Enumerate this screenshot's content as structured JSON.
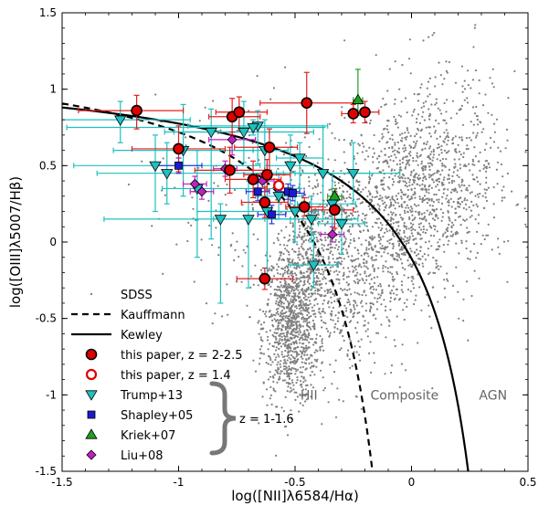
{
  "chart_data": {
    "type": "scatter",
    "xlabel": "log([NII]λ6584/Hα)",
    "ylabel": "log([OIII]λ5007/Hβ)",
    "xlim": [
      -1.5,
      0.5
    ],
    "ylim": [
      -1.5,
      1.5
    ],
    "x_ticks": [
      -1.5,
      -1.0,
      -0.5,
      0,
      0.5
    ],
    "x_tick_labels": [
      "-1.5",
      "-1",
      "-0.5",
      "0",
      "0.5"
    ],
    "y_ticks": [
      -1.5,
      -1.0,
      -0.5,
      0,
      0.5,
      1.0,
      1.5
    ],
    "y_tick_labels": [
      "-1.5",
      "-1",
      "-0.5",
      "0",
      "0.5",
      "1",
      "1.5"
    ],
    "grid": false,
    "legend_placement": "bottom-left",
    "region_labels": [
      {
        "text": "HII",
        "x": -0.44,
        "y": -1.0
      },
      {
        "text": "Composite",
        "x": -0.03,
        "y": -1.0
      },
      {
        "text": "AGN",
        "x": 0.35,
        "y": -1.0
      }
    ],
    "brace_label": "z = 1-1.6",
    "sdss_clusters": [
      {
        "cx": -0.52,
        "cy": -0.55,
        "sx": 0.06,
        "sy": 0.25,
        "n": 900
      },
      {
        "cx": -0.42,
        "cy": -0.1,
        "sx": 0.08,
        "sy": 0.3,
        "n": 500
      },
      {
        "cx": -0.25,
        "cy": -0.2,
        "sx": 0.12,
        "sy": 0.35,
        "n": 500
      },
      {
        "cx": -0.05,
        "cy": 0.25,
        "sx": 0.12,
        "sy": 0.3,
        "n": 700
      },
      {
        "cx": 0.15,
        "cy": 0.45,
        "sx": 0.15,
        "sy": 0.35,
        "n": 600
      },
      {
        "cx": -0.75,
        "cy": 0.2,
        "sx": 0.2,
        "sy": 0.4,
        "n": 120
      }
    ],
    "series": [
      {
        "name": "SDSS",
        "marker": "small-dot",
        "color": "#808080"
      },
      {
        "name": "Kauffmann",
        "marker": "dashed-line",
        "color": "#000000",
        "formula": "0.61/(x-0.05)+1.3"
      },
      {
        "name": "Kewley",
        "marker": "solid-line",
        "color": "#000000",
        "formula": "0.61/(x-0.47)+1.19"
      },
      {
        "name": "this paper, z = 2-2.5",
        "marker": "filled-circle",
        "color": "#e00000",
        "fill": "#e00000",
        "errcolor": "#e02020",
        "points": [
          {
            "x": -1.18,
            "y": 0.86,
            "xl": 0.25,
            "xh": 0.2,
            "yl": 0.12,
            "yh": 0.1
          },
          {
            "x": -1.0,
            "y": 0.61,
            "xl": 0.2,
            "xh": 0.2,
            "yl": 0.15,
            "yh": 0.15
          },
          {
            "x": -0.77,
            "y": 0.82,
            "xl": 0.1,
            "xh": 0.12,
            "yl": 0.12,
            "yh": 0.12
          },
          {
            "x": -0.74,
            "y": 0.85,
            "xl": 0.1,
            "xh": 0.12,
            "yl": 0.12,
            "yh": 0.1
          },
          {
            "x": -0.78,
            "y": 0.47,
            "xl": 0.15,
            "xh": 0.15,
            "yl": 0.15,
            "yh": 0.15
          },
          {
            "x": -0.61,
            "y": 0.62,
            "xl": 0.15,
            "xh": 0.12,
            "yl": 0.15,
            "yh": 0.12
          },
          {
            "x": -0.68,
            "y": 0.41,
            "xl": 0.12,
            "xh": 0.12,
            "yl": 0.12,
            "yh": 0.12
          },
          {
            "x": -0.62,
            "y": 0.44,
            "xl": 0.1,
            "xh": 0.1,
            "yl": 0.1,
            "yh": 0.1
          },
          {
            "x": -0.63,
            "y": 0.26,
            "xl": 0.1,
            "xh": 0.1,
            "yl": 0.1,
            "yh": 0.1
          },
          {
            "x": -0.45,
            "y": 0.91,
            "xl": 0.2,
            "xh": 0.2,
            "yl": 0.2,
            "yh": 0.2
          },
          {
            "x": -0.46,
            "y": 0.23,
            "xl": 0.08,
            "xh": 0.08,
            "yl": 0.06,
            "yh": 0.06
          },
          {
            "x": -0.33,
            "y": 0.21,
            "xl": 0.1,
            "xh": 0.08,
            "yl": 0.12,
            "yh": 0.12
          },
          {
            "x": -0.25,
            "y": 0.84,
            "xl": 0.05,
            "xh": 0.05,
            "yl": 0.06,
            "yh": 0.06
          },
          {
            "x": -0.2,
            "y": 0.85,
            "xl": 0.06,
            "xh": 0.06,
            "yl": 0.07,
            "yh": 0.07
          },
          {
            "x": -0.63,
            "y": -0.24,
            "xl": 0.12,
            "xh": 0.12,
            "yl": 0.07,
            "yh": 0.07
          }
        ]
      },
      {
        "name": "this paper, z = 1.4",
        "marker": "open-circle",
        "color": "#e00000",
        "fill": "#ffffff",
        "errcolor": "#e02020",
        "points": [
          {
            "x": -0.57,
            "y": 0.37,
            "xl": 0.02,
            "xh": 0.02,
            "yl": 0.02,
            "yh": 0.02
          }
        ]
      },
      {
        "name": "Trump+13",
        "marker": "triangle-down",
        "color": "#20c0c0",
        "fill": "#20c0c0",
        "errcolor": "#20c0c0",
        "points": [
          {
            "x": -1.25,
            "y": 0.8,
            "xl": 0.45,
            "xh": 0.3,
            "yl": 0.15,
            "yh": 0.12
          },
          {
            "x": -1.1,
            "y": 0.5,
            "xl": 0.35,
            "xh": 0.45,
            "yl": 0.3,
            "yh": 0.2
          },
          {
            "x": -1.05,
            "y": 0.45,
            "xl": 0.3,
            "xh": 0.5,
            "yl": 0.2,
            "yh": 0.2
          },
          {
            "x": -0.98,
            "y": 0.6,
            "xl": 0.3,
            "xh": 0.3,
            "yl": 0.3,
            "yh": 0.3
          },
          {
            "x": -0.92,
            "y": 0.35,
            "xl": 0.15,
            "xh": 0.35,
            "yl": 0.45,
            "yh": 0.25
          },
          {
            "x": -0.86,
            "y": 0.72,
            "xl": 0.2,
            "xh": 0.25,
            "yl": 0.7,
            "yh": 0.15
          },
          {
            "x": -0.82,
            "y": 0.15,
            "xl": 0.5,
            "xh": 0.3,
            "yl": 0.55,
            "yh": 0.1
          },
          {
            "x": -0.72,
            "y": 0.72,
            "xl": 0.3,
            "xh": 0.3,
            "yl": 0.2,
            "yh": 0.2
          },
          {
            "x": -0.66,
            "y": 0.76,
            "xl": 0.3,
            "xh": 0.3,
            "yl": 0.25,
            "yh": 0.1
          },
          {
            "x": -0.63,
            "y": 0.6,
            "xl": 0.15,
            "xh": 0.1,
            "yl": 0.3,
            "yh": 0.2
          },
          {
            "x": -0.7,
            "y": 0.15,
            "xl": 0.15,
            "xh": 0.2,
            "yl": 0.45,
            "yh": 0.25
          },
          {
            "x": -0.62,
            "y": 0.2,
            "xl": 0.3,
            "xh": 0.2,
            "yl": 0.45,
            "yh": 0.3
          },
          {
            "x": -0.57,
            "y": 0.3,
            "xl": 0.1,
            "xh": 0.1,
            "yl": 0.15,
            "yh": 0.15
          },
          {
            "x": -0.52,
            "y": 0.5,
            "xl": 0.1,
            "xh": 0.1,
            "yl": 0.25,
            "yh": 0.2
          },
          {
            "x": -0.5,
            "y": 0.2,
            "xl": 0.1,
            "xh": 0.1,
            "yl": 0.2,
            "yh": 0.15
          },
          {
            "x": -0.48,
            "y": 0.55,
            "xl": 0.1,
            "xh": 0.1,
            "yl": 0.2,
            "yh": 0.1
          },
          {
            "x": -0.43,
            "y": 0.15,
            "xl": 0.2,
            "xh": 0.2,
            "yl": 0.15,
            "yh": 0.15
          },
          {
            "x": -0.42,
            "y": -0.15,
            "xl": 0.1,
            "xh": 0.1,
            "yl": 0.15,
            "yh": 0.2
          },
          {
            "x": -0.38,
            "y": 0.45,
            "xl": 0.2,
            "xh": 0.2,
            "yl": 0.3,
            "yh": 0.3
          },
          {
            "x": -0.34,
            "y": 0.25,
            "xl": 0.15,
            "xh": 0.1,
            "yl": 0.2,
            "yh": 0.2
          },
          {
            "x": -0.3,
            "y": 0.12,
            "xl": 0.1,
            "xh": 0.1,
            "yl": 0.2,
            "yh": 0.1
          },
          {
            "x": -0.25,
            "y": 0.45,
            "xl": 0.25,
            "xh": 0.2,
            "yl": 0.2,
            "yh": 0.2
          },
          {
            "x": -0.68,
            "y": 0.75,
            "xl": 0.8,
            "xh": 0.3,
            "yl": 0.05,
            "yh": 0.05
          }
        ]
      },
      {
        "name": "Shapley+05",
        "marker": "square",
        "color": "#0000c0",
        "fill": "#1a1ad0",
        "errcolor": "#3030e0",
        "points": [
          {
            "x": -1.0,
            "y": 0.5,
            "xl": 0.1,
            "xh": 0.1,
            "yl": 0.05,
            "yh": 0.05
          },
          {
            "x": -0.66,
            "y": 0.33,
            "xl": 0.05,
            "xh": 0.05,
            "yl": 0.06,
            "yh": 0.06
          },
          {
            "x": -0.6,
            "y": 0.18,
            "xl": 0.06,
            "xh": 0.06,
            "yl": 0.06,
            "yh": 0.06
          },
          {
            "x": -0.53,
            "y": 0.33,
            "xl": 0.05,
            "xh": 0.05,
            "yl": 0.05,
            "yh": 0.05
          },
          {
            "x": -0.51,
            "y": 0.32,
            "xl": 0.05,
            "xh": 0.05,
            "yl": 0.05,
            "yh": 0.05
          }
        ]
      },
      {
        "name": "Kriek+07",
        "marker": "triangle-up",
        "color": "#008000",
        "fill": "#20a020",
        "errcolor": "#20a020",
        "points": [
          {
            "x": -0.23,
            "y": 0.93,
            "xl": 0.02,
            "xh": 0.02,
            "yl": 0.1,
            "yh": 0.2
          },
          {
            "x": -0.33,
            "y": 0.3,
            "xl": 0.03,
            "xh": 0.03,
            "yl": 0.05,
            "yh": 0.05
          }
        ]
      },
      {
        "name": "Liu+08",
        "marker": "diamond",
        "color": "#a000a0",
        "fill": "#c020c0",
        "errcolor": "#c020c0",
        "points": [
          {
            "x": -0.93,
            "y": 0.38,
            "xl": 0.05,
            "xh": 0.05,
            "yl": 0.05,
            "yh": 0.05
          },
          {
            "x": -0.9,
            "y": 0.33,
            "xl": 0.05,
            "xh": 0.05,
            "yl": 0.05,
            "yh": 0.05
          },
          {
            "x": -0.77,
            "y": 0.67,
            "xl": 0.1,
            "xh": 0.1,
            "yl": 0.1,
            "yh": 0.05
          },
          {
            "x": -0.8,
            "y": 0.48,
            "xl": 0.05,
            "xh": 0.05,
            "yl": 0.05,
            "yh": 0.05
          },
          {
            "x": -0.64,
            "y": 0.4,
            "xl": 0.05,
            "xh": 0.05,
            "yl": 0.05,
            "yh": 0.05
          },
          {
            "x": -0.34,
            "y": 0.05,
            "xl": 0.05,
            "xh": 0.05,
            "yl": 0.05,
            "yh": 0.05
          }
        ]
      }
    ]
  }
}
